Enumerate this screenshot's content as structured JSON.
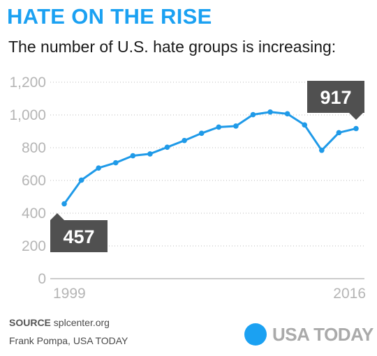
{
  "header": {
    "title": "HATE ON THE RISE",
    "subtitle": "The number of U.S. hate groups is increasing:"
  },
  "chart_data": {
    "type": "line",
    "x": [
      1999,
      2000,
      2001,
      2002,
      2003,
      2004,
      2005,
      2006,
      2007,
      2008,
      2009,
      2010,
      2011,
      2012,
      2013,
      2014,
      2015,
      2016
    ],
    "series": [
      {
        "values": [
          457,
          602,
          676,
          708,
          751,
          762,
          803,
          844,
          888,
          926,
          932,
          1002,
          1018,
          1007,
          939,
          784,
          892,
          917
        ]
      }
    ],
    "xlim": [
      1999,
      2016
    ],
    "ylim": [
      0,
      1200
    ],
    "yticks": [
      0,
      200,
      400,
      600,
      800,
      1000,
      1200
    ],
    "ytick_labels": [
      "0",
      "200",
      "400",
      "600",
      "800",
      "1,000",
      "1,200"
    ],
    "xtick_labels": [
      "1999",
      "2016"
    ],
    "annotations": [
      {
        "index": 0,
        "text": "457",
        "placement": "below"
      },
      {
        "index": 17,
        "text": "917",
        "placement": "above"
      }
    ],
    "grid": true,
    "grid_style": "dotted",
    "xlabel": "",
    "ylabel": ""
  },
  "colors": {
    "title": "#1ba1f2",
    "line": "#1f9ae8",
    "callout": "#505050",
    "grid": "#bbbbbb",
    "tick_label": "#b5b5b5",
    "logo_dot": "#1ba1f2",
    "logo_text": "#aaaaaa"
  },
  "footer": {
    "source_label": "SOURCE",
    "source_text": "splcenter.org",
    "credit": "Frank Pompa, USA TODAY",
    "logo_text": "USA TODAY",
    "logo_icon": "usa-today-dot-icon"
  }
}
